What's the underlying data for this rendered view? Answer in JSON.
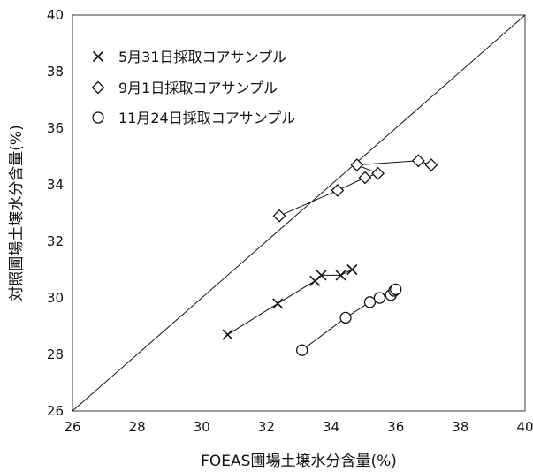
{
  "chart_data": {
    "type": "scatter",
    "title": "",
    "xlabel": "FOEAS圃場土壌水分含量(%)",
    "ylabel": "対照圃場土壌水分含量(%)",
    "xlim": [
      26,
      40
    ],
    "ylim": [
      26,
      40
    ],
    "xticks": [
      26,
      28,
      30,
      32,
      34,
      36,
      38,
      40
    ],
    "yticks": [
      26,
      28,
      30,
      32,
      34,
      36,
      38,
      40
    ],
    "grid": false,
    "legend_position": "top-left",
    "reference_line": {
      "label": "",
      "points": [
        [
          26,
          26
        ],
        [
          40,
          40
        ]
      ]
    },
    "series": [
      {
        "name": "5月31日採取コアサンプル",
        "marker": "x",
        "points": [
          [
            30.8,
            28.7
          ],
          [
            32.35,
            29.8
          ],
          [
            33.5,
            30.6
          ],
          [
            33.7,
            30.8
          ],
          [
            34.3,
            30.8
          ],
          [
            34.65,
            31.0
          ]
        ]
      },
      {
        "name": "9月1日採取コアサンプル",
        "marker": "diamond",
        "points": [
          [
            32.4,
            32.9
          ],
          [
            34.2,
            33.8
          ],
          [
            35.05,
            34.25
          ],
          [
            35.45,
            34.4
          ],
          [
            34.8,
            34.7
          ],
          [
            36.7,
            34.85
          ],
          [
            37.1,
            34.7
          ]
        ]
      },
      {
        "name": "11月24日採取コアサンプル",
        "marker": "circle",
        "points": [
          [
            33.1,
            28.15
          ],
          [
            34.45,
            29.3
          ],
          [
            35.2,
            29.85
          ],
          [
            35.5,
            30.0
          ],
          [
            35.85,
            30.1
          ],
          [
            35.95,
            30.25
          ],
          [
            36.0,
            30.3
          ]
        ]
      }
    ]
  }
}
